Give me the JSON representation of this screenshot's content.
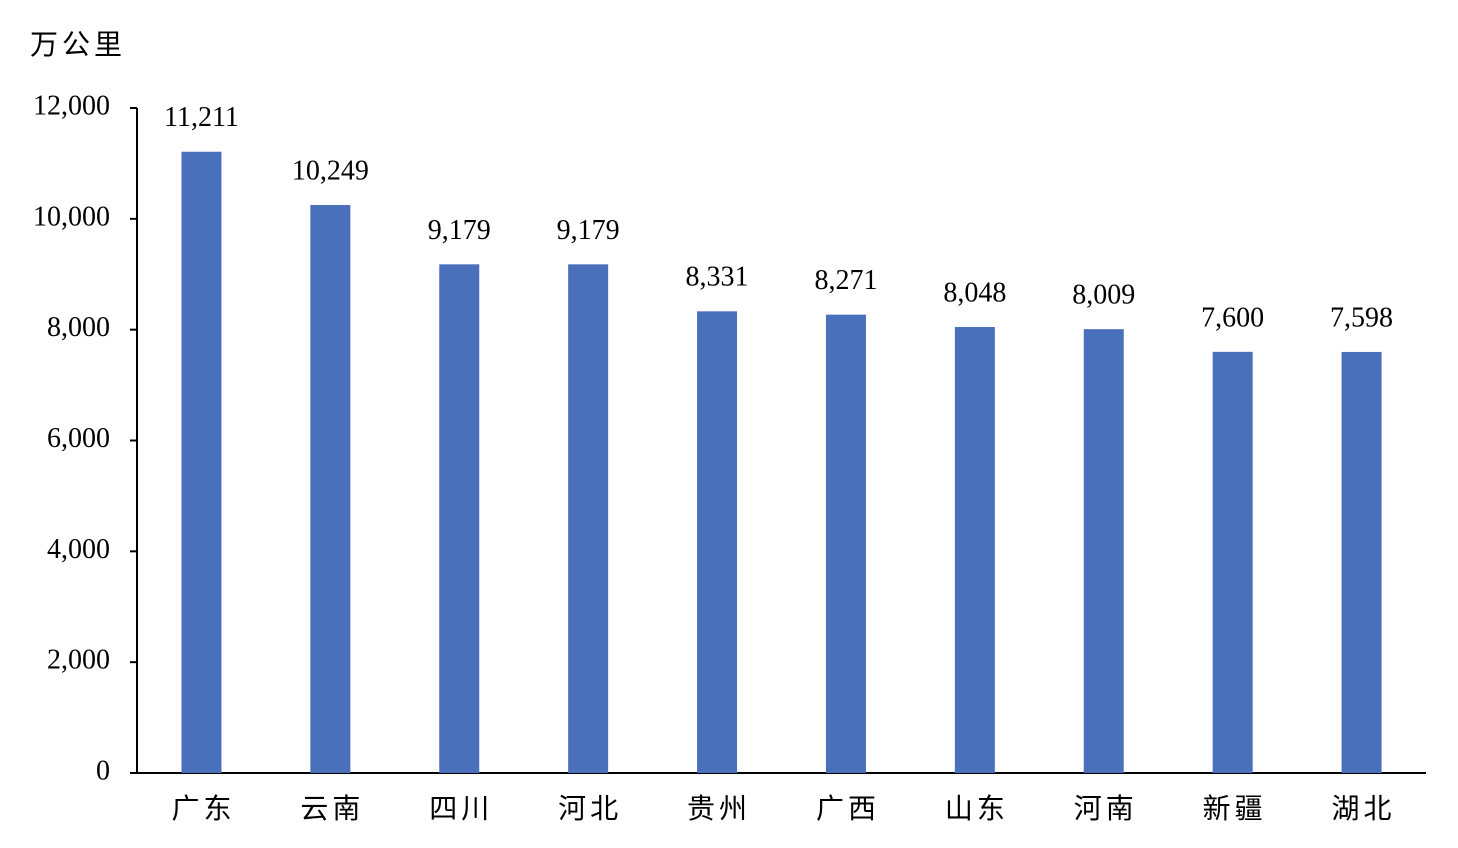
{
  "chart_data": {
    "type": "bar",
    "y_label": "万公里",
    "categories": [
      "广东",
      "云南",
      "四川",
      "河北",
      "贵州",
      "广西",
      "山东",
      "河南",
      "新疆",
      "湖北"
    ],
    "values": [
      11211,
      10249,
      9179,
      9179,
      8331,
      8271,
      8048,
      8009,
      7600,
      7598
    ],
    "value_labels": [
      "11,211",
      "10,249",
      "9,179",
      "9,179",
      "8,331",
      "8,271",
      "8,048",
      "8,009",
      "7,600",
      "7,598"
    ],
    "color": "#4a70bb",
    "ylim": [
      0,
      12000
    ],
    "yticks": [
      0,
      {
        "value": 2000,
        "label": "2,000"
      },
      {
        "value": 4000,
        "label": "4,000"
      },
      {
        "value": 6000,
        "label": "6,000"
      },
      {
        "value": 8000,
        "label": "8,000"
      },
      {
        "value": 10000,
        "label": "10,000"
      },
      {
        "value": 12000,
        "label": "12,000"
      }
    ],
    "grid": false
  }
}
